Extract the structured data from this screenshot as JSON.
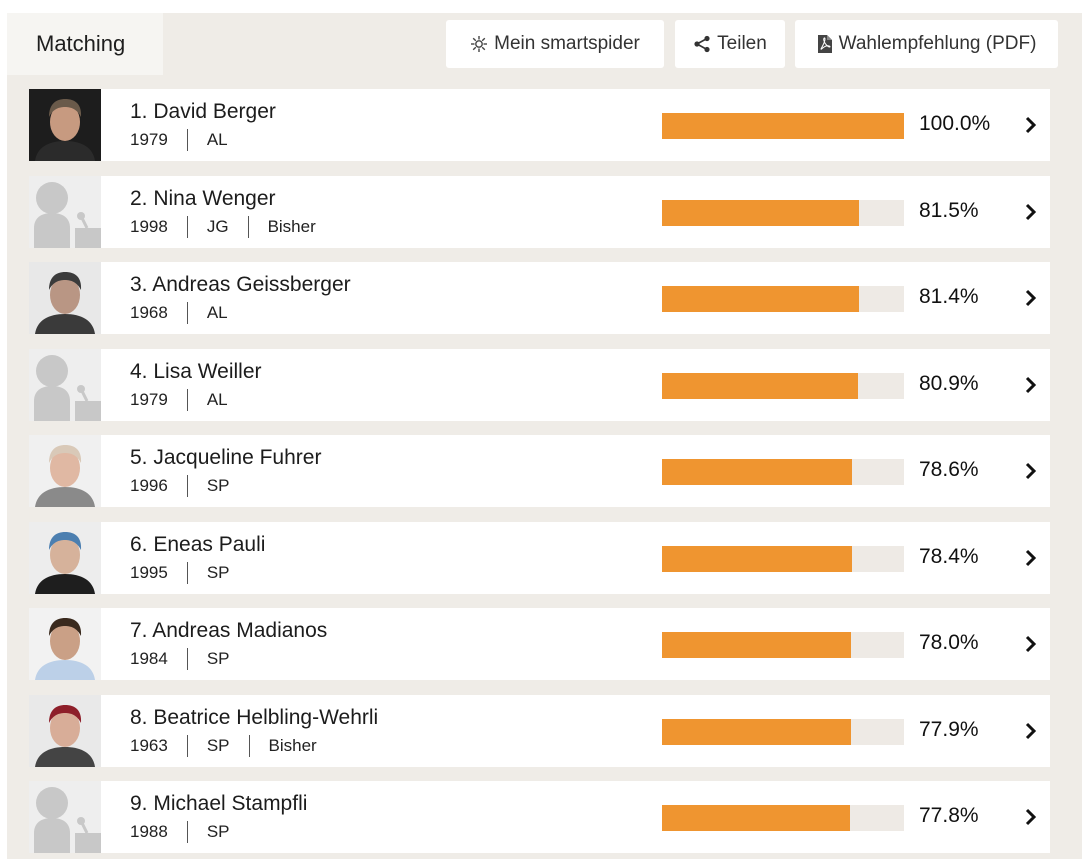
{
  "toolbar": {
    "tab_label": "Matching",
    "spider_label": "Mein smartspider",
    "spider_icon": "spider-icon",
    "share_label": "Teilen",
    "share_icon": "share-icon",
    "pdf_label": "Wahlempfehlung (PDF)",
    "pdf_icon": "pdf-file-icon"
  },
  "colors": {
    "bar_fill": "#ef9530",
    "bar_track": "#eeeae5",
    "background": "#efece7"
  },
  "candidates": [
    {
      "rank_name": "1. David Berger",
      "year": "1979",
      "party": "AL",
      "status": "",
      "percent_label": "100.0%",
      "match": 100.0,
      "photo": "photo"
    },
    {
      "rank_name": "2. Nina Wenger",
      "year": "1998",
      "party": "JG",
      "status": "Bisher",
      "percent_label": "81.5%",
      "match": 81.5,
      "photo": "placeholder"
    },
    {
      "rank_name": "3. Andreas Geissberger",
      "year": "1968",
      "party": "AL",
      "status": "",
      "percent_label": "81.4%",
      "match": 81.4,
      "photo": "photo"
    },
    {
      "rank_name": "4. Lisa Weiller",
      "year": "1979",
      "party": "AL",
      "status": "",
      "percent_label": "80.9%",
      "match": 80.9,
      "photo": "placeholder"
    },
    {
      "rank_name": "5. Jacqueline Fuhrer",
      "year": "1996",
      "party": "SP",
      "status": "",
      "percent_label": "78.6%",
      "match": 78.6,
      "photo": "photo"
    },
    {
      "rank_name": "6. Eneas Pauli",
      "year": "1995",
      "party": "SP",
      "status": "",
      "percent_label": "78.4%",
      "match": 78.4,
      "photo": "photo"
    },
    {
      "rank_name": "7. Andreas Madianos",
      "year": "1984",
      "party": "SP",
      "status": "",
      "percent_label": "78.0%",
      "match": 78.0,
      "photo": "photo"
    },
    {
      "rank_name": "8. Beatrice Helbling-Wehrli",
      "year": "1963",
      "party": "SP",
      "status": "Bisher",
      "percent_label": "77.9%",
      "match": 77.9,
      "photo": "photo"
    },
    {
      "rank_name": "9. Michael Stampfli",
      "year": "1988",
      "party": "SP",
      "status": "",
      "percent_label": "77.8%",
      "match": 77.8,
      "photo": "placeholder"
    }
  ]
}
